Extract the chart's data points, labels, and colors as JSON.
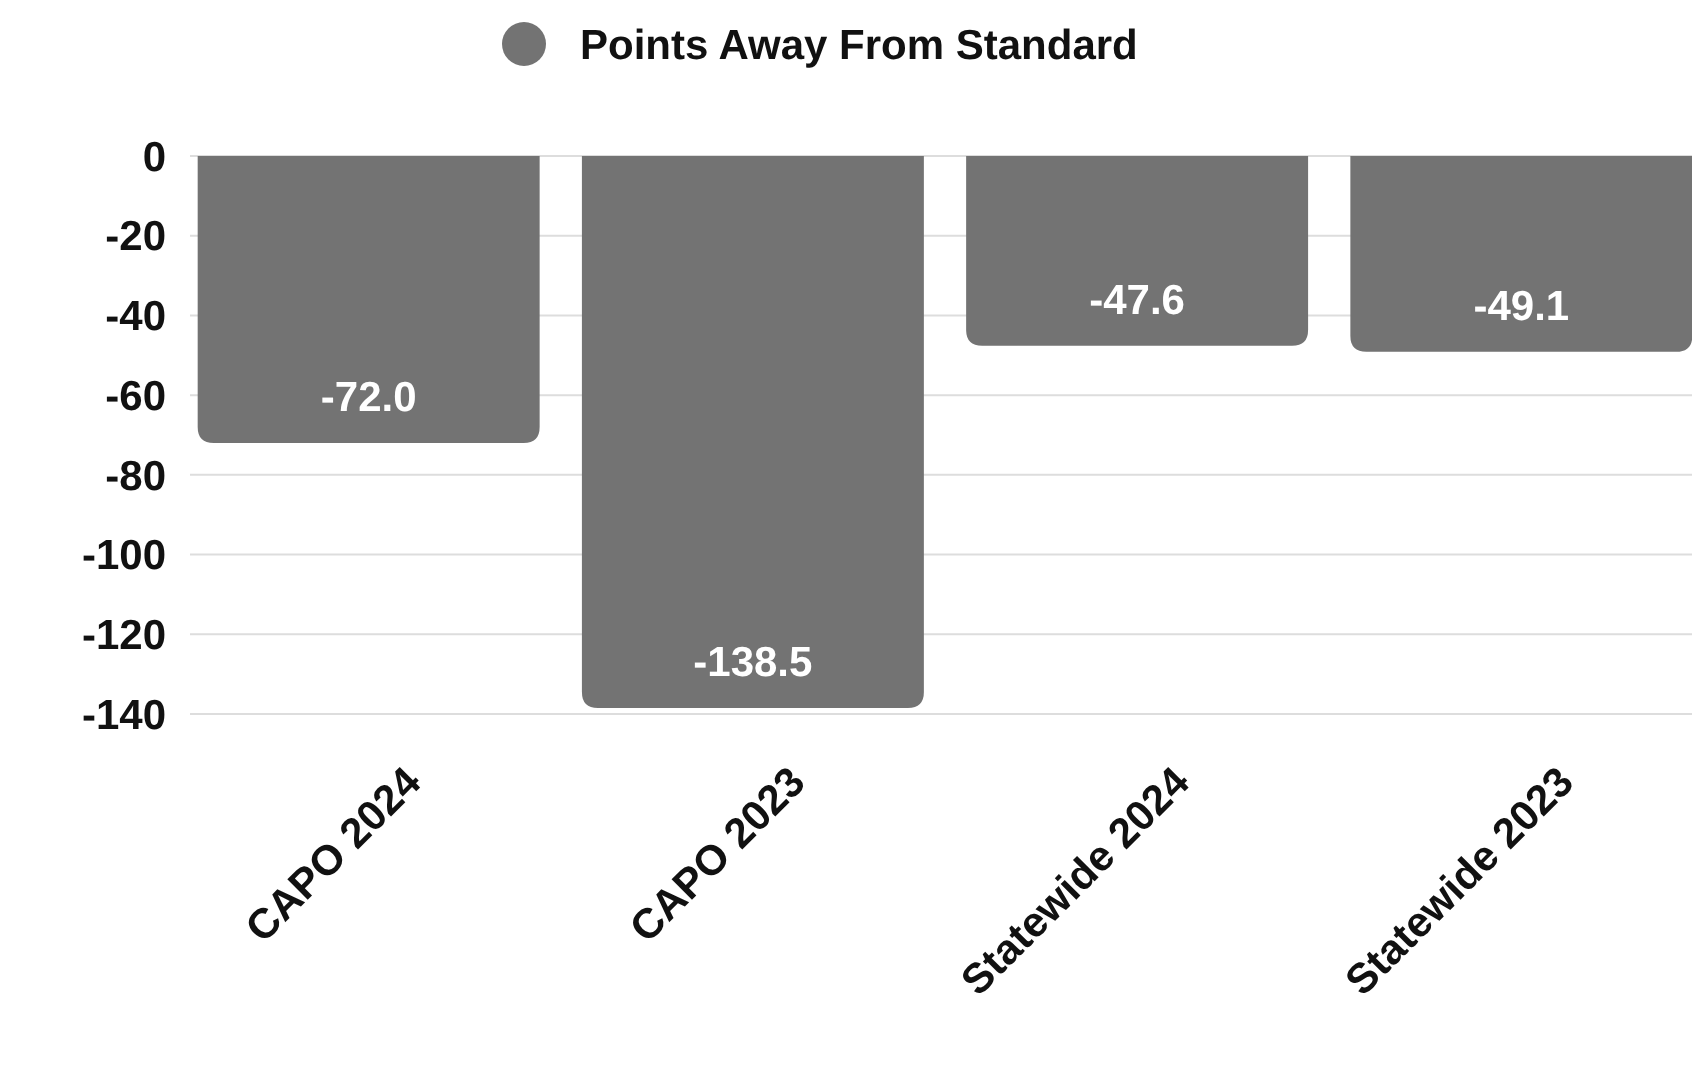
{
  "chart_data": {
    "type": "bar",
    "categories": [
      "CAPO 2024",
      "CAPO 2023",
      "Statewide 2024",
      "Statewide 2023"
    ],
    "series": [
      {
        "name": "Points Away From Standard",
        "color": "#737373",
        "values": [
          -72.0,
          -138.5,
          -47.6,
          -49.1
        ],
        "value_labels": [
          "-72.0",
          "-138.5",
          "-47.6",
          "-49.1"
        ]
      }
    ],
    "ylim": [
      -140,
      0
    ],
    "yticks": [
      0,
      -20,
      -40,
      -60,
      -80,
      -100,
      -120,
      -140
    ],
    "grid": "y",
    "legend": "top"
  }
}
